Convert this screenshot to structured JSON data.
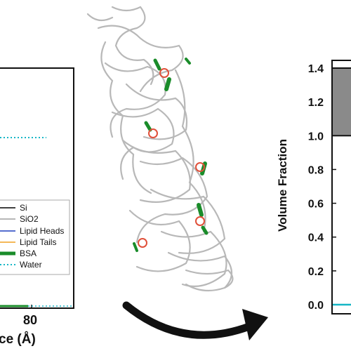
{
  "chart_data": [
    {
      "type": "line",
      "xlabel": "ce (Å)",
      "ylabel": "",
      "x_ticks": [
        "80"
      ],
      "y_ticks": [],
      "legend_position": "bottom-right",
      "series": [
        {
          "name": "Si",
          "color": "#000000",
          "style": "solid"
        },
        {
          "name": "SiO2",
          "color": "#9e9e9e",
          "style": "solid"
        },
        {
          "name": "Lipid Heads",
          "color": "#1f3fbf",
          "style": "solid"
        },
        {
          "name": "Lipid Tails",
          "color": "#f0a020",
          "style": "solid"
        },
        {
          "name": "BSA",
          "color": "#1a8c2a",
          "style": "thick"
        },
        {
          "name": "Water",
          "color": "#16b6c6",
          "style": "dotted"
        }
      ],
      "visible_values": {
        "water_level_y": 1.0
      }
    },
    {
      "type": "bar",
      "ylabel": "Volume Fraction",
      "ylim": [
        0,
        1.4
      ],
      "y_ticks": [
        "0.0",
        "0.2",
        "0.4",
        "0.6",
        "0.8",
        "1.0",
        "1.2",
        "1.4"
      ],
      "bar_values": {
        "gray_from": 1.0,
        "gray_to": 1.4,
        "baseline": 0.0
      },
      "colors": {
        "gray_bar": "#8a8a8a",
        "baseline_line": "#16b6c6"
      }
    }
  ],
  "protein": {
    "description_icon": "protein-ribbon-image"
  }
}
